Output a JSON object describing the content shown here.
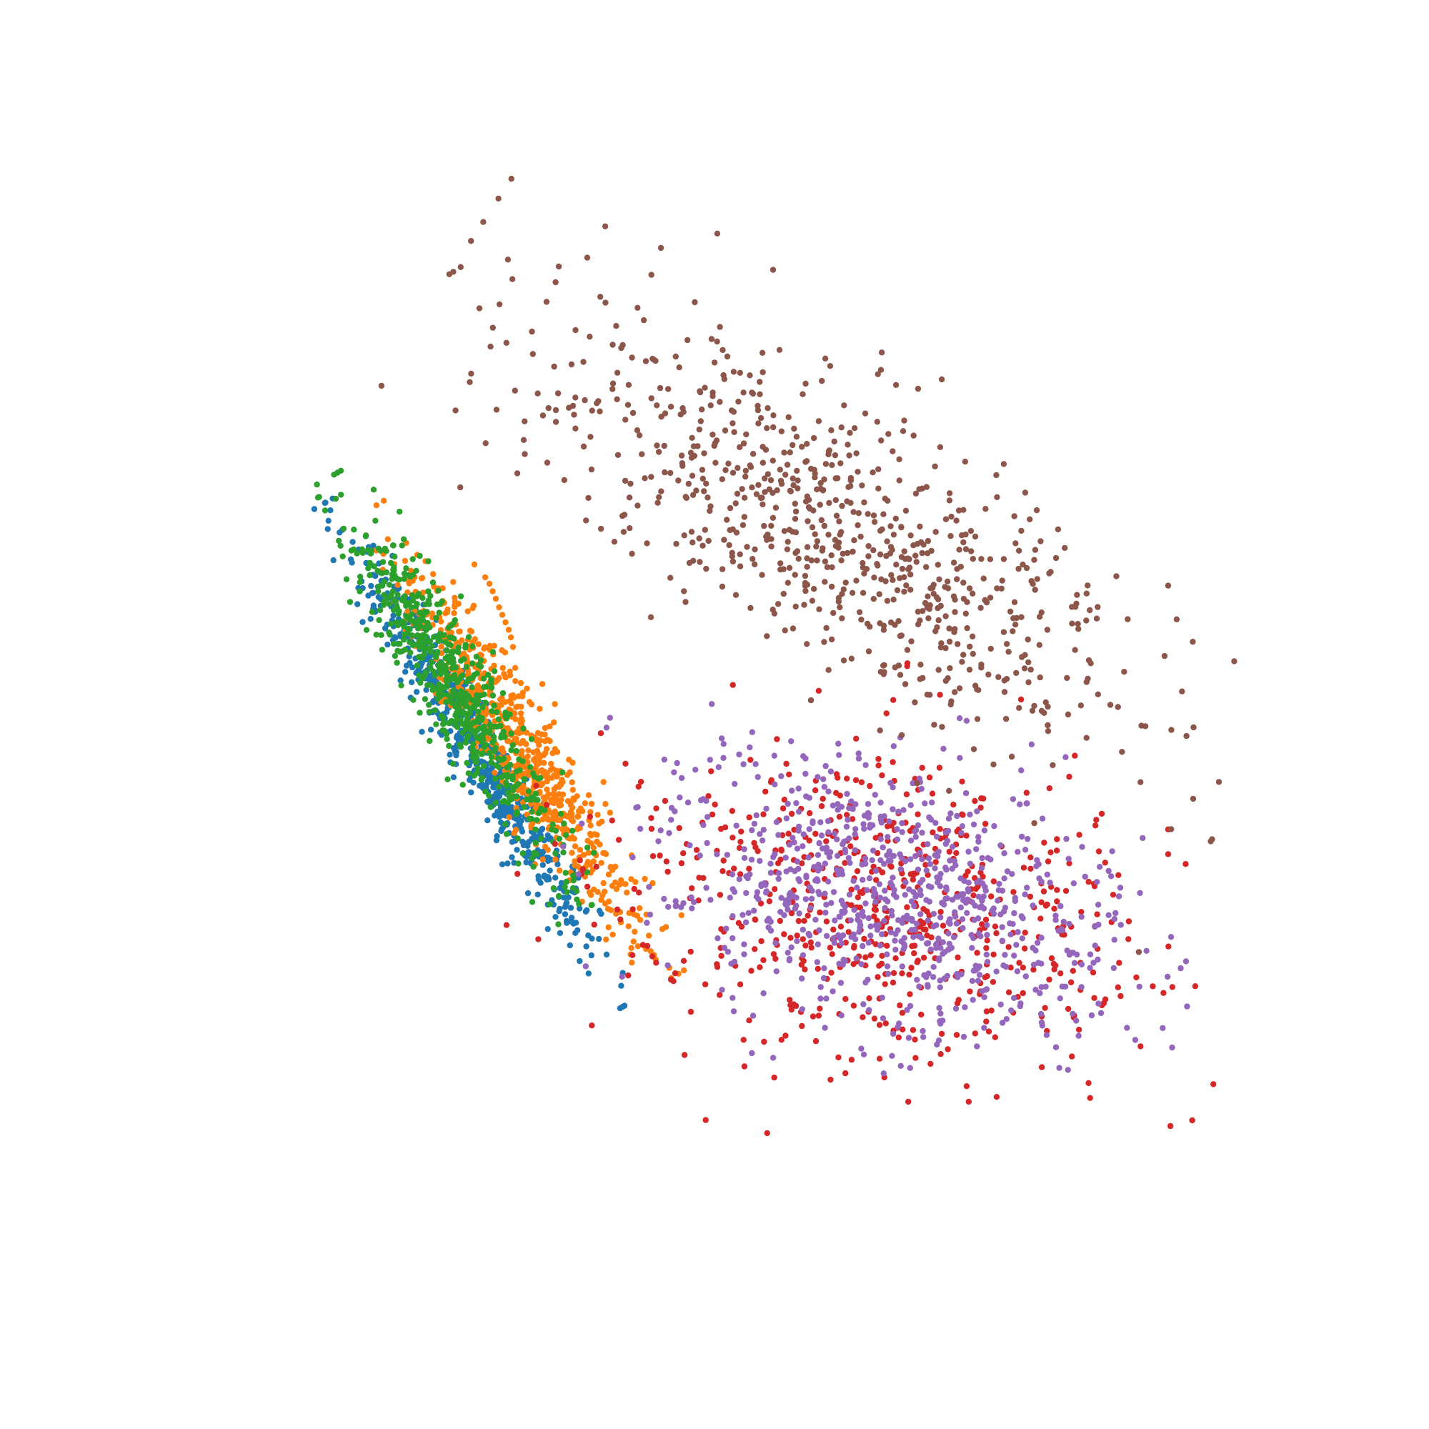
{
  "chart_data": {
    "type": "scatter",
    "title": "",
    "xlabel": "",
    "ylabel": "",
    "axes_visible": false,
    "grid": false,
    "legend": "none",
    "xlim": [
      0,
      100
    ],
    "ylim": [
      0,
      100
    ],
    "series": [
      {
        "color": "#1f77b4",
        "count": 620,
        "shape": "ellipse",
        "center": [
          28.0,
          46.5
        ],
        "spread": [
          10.5,
          1.25
        ],
        "angle_deg": -60,
        "seed": 101
      },
      {
        "color": "#ff7f0e",
        "count": 650,
        "shape": "ellipse",
        "center": [
          31.8,
          47.2
        ],
        "spread": [
          10.0,
          1.6
        ],
        "angle_deg": -58,
        "seed": 202,
        "extra_points": [
          [
            28.6,
            62.8
          ],
          [
            29.0,
            62.2
          ],
          [
            29.3,
            61.5
          ],
          [
            29.6,
            60.8
          ],
          [
            29.9,
            60.0
          ],
          [
            30.2,
            59.3
          ],
          [
            30.5,
            58.6
          ],
          [
            30.8,
            57.9
          ],
          [
            31.0,
            57.2
          ],
          [
            27.6,
            64.0
          ],
          [
            31.2,
            56.3
          ],
          [
            33.2,
            45.8
          ],
          [
            36.5,
            44.6
          ],
          [
            38.4,
            36.0
          ],
          [
            37.8,
            36.9
          ],
          [
            37.0,
            37.7
          ],
          [
            36.3,
            38.5
          ],
          [
            35.8,
            39.3
          ]
        ]
      },
      {
        "color": "#2ca02c",
        "count": 600,
        "shape": "ellipse",
        "center": [
          26.0,
          52.0
        ],
        "spread": [
          9.0,
          1.6
        ],
        "angle_deg": -60,
        "seed": 303,
        "extra_points": [
          [
            16.0,
            60.5
          ],
          [
            22.5,
            64.8
          ],
          [
            23.3,
            64.3
          ],
          [
            20.0,
            61.5
          ]
        ]
      },
      {
        "color": "#d62728",
        "count": 620,
        "shape": "ellipse",
        "center": [
          65.5,
          32.0
        ],
        "spread": [
          13.0,
          7.6
        ],
        "angle_deg": -12,
        "seed": 404
      },
      {
        "color": "#9467bd",
        "count": 800,
        "shape": "ellipse",
        "center": [
          66.0,
          33.0
        ],
        "spread": [
          11.5,
          6.0
        ],
        "angle_deg": -20,
        "seed": 505
      },
      {
        "color": "#8c564b",
        "count": 780,
        "shape": "ellipse",
        "center": [
          62.0,
          66.5
        ],
        "spread": [
          17.0,
          5.8
        ],
        "angle_deg": -33,
        "seed": 606,
        "extra_points": [
          [
            40.5,
            84.5
          ],
          [
            41.3,
            84.2
          ],
          [
            42.3,
            83.3
          ],
          [
            44.5,
            83.0
          ],
          [
            51.2,
            83.4
          ],
          [
            31.6,
            72.5
          ],
          [
            32.3,
            74.3
          ],
          [
            34.4,
            73.5
          ],
          [
            35.2,
            78.4
          ],
          [
            36.8,
            78.8
          ],
          [
            37.8,
            75.0
          ],
          [
            42.3,
            65.0
          ],
          [
            47.3,
            60.5
          ],
          [
            51.0,
            76.5
          ],
          [
            56.2,
            71.8
          ]
        ]
      }
    ]
  }
}
